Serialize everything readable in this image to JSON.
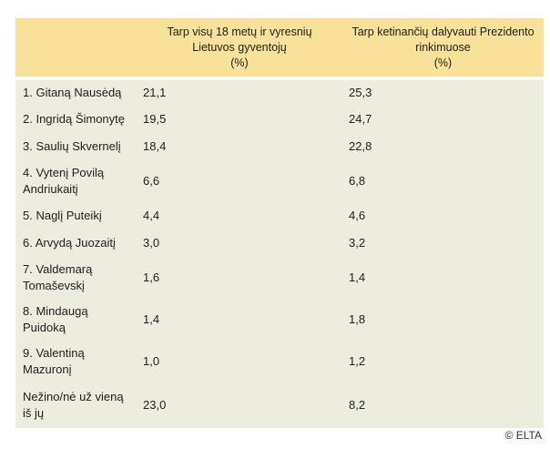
{
  "colors": {
    "header_bg": "#F8E29A",
    "body_bg": "#ECEDDF",
    "text": "#212121",
    "credit_text": "#333333"
  },
  "table": {
    "header": {
      "candidate_col": "",
      "col1_lines": [
        "Tarp visų 18 metų ir vyresnių",
        "Lietuvos gyventojų",
        "(%)"
      ],
      "col2_lines": [
        "Tarp ketinančių dalyvauti Prezidento",
        "rinkimuose",
        "(%)"
      ]
    },
    "rows": [
      {
        "name": "1. Gitaną Nausėdą",
        "all_adults": "21,1",
        "intending_voters": "25,3"
      },
      {
        "name": "2. Ingridą Šimonytę",
        "all_adults": "19,5",
        "intending_voters": "24,7"
      },
      {
        "name": "3. Saulių Skvernelį",
        "all_adults": "18,4",
        "intending_voters": "22,8"
      },
      {
        "name": "4. Vytenį Povilą Andriukaitį",
        "all_adults": "6,6",
        "intending_voters": "6,8"
      },
      {
        "name": "5. Naglį Puteikį",
        "all_adults": "4,4",
        "intending_voters": "4,6"
      },
      {
        "name": "6. Arvydą Juozaitį",
        "all_adults": "3,0",
        "intending_voters": "3,2"
      },
      {
        "name": "7. Valdemarą Tomaševskį",
        "all_adults": "1,6",
        "intending_voters": "1,4"
      },
      {
        "name": "8. Mindaugą Puidoką",
        "all_adults": "1,4",
        "intending_voters": "1,8"
      },
      {
        "name": "9. Valentiną Mazuronį",
        "all_adults": "1,0",
        "intending_voters": "1,2"
      },
      {
        "name": "Nežino/nė už vieną iš jų",
        "all_adults": "23,0",
        "intending_voters": "8,2"
      }
    ]
  },
  "footer": {
    "credit": "© ELTA"
  },
  "chart_data": {
    "type": "table",
    "title": "",
    "categories": [
      "1. Gitaną Nausėdą",
      "2. Ingridą Šimonytę",
      "3. Saulių Skvernelį",
      "4. Vytenį Povilą Andriukaitį",
      "5. Naglį Puteikį",
      "6. Arvydą Juozaitį",
      "7. Valdemarą Tomaševskį",
      "8. Mindaugą Puidoką",
      "9. Valentiną Mazuronį",
      "Nežino/nė už vieną iš jų"
    ],
    "series": [
      {
        "name": "Tarp visų 18 metų ir vyresnių Lietuvos gyventojų (%)",
        "values": [
          21.1,
          19.5,
          18.4,
          6.6,
          4.4,
          3.0,
          1.6,
          1.4,
          1.0,
          23.0
        ]
      },
      {
        "name": "Tarp ketinančių dalyvauti Prezidento rinkimuose (%)",
        "values": [
          25.3,
          24.7,
          22.8,
          6.8,
          4.6,
          3.2,
          1.4,
          1.8,
          1.2,
          8.2
        ]
      }
    ]
  }
}
